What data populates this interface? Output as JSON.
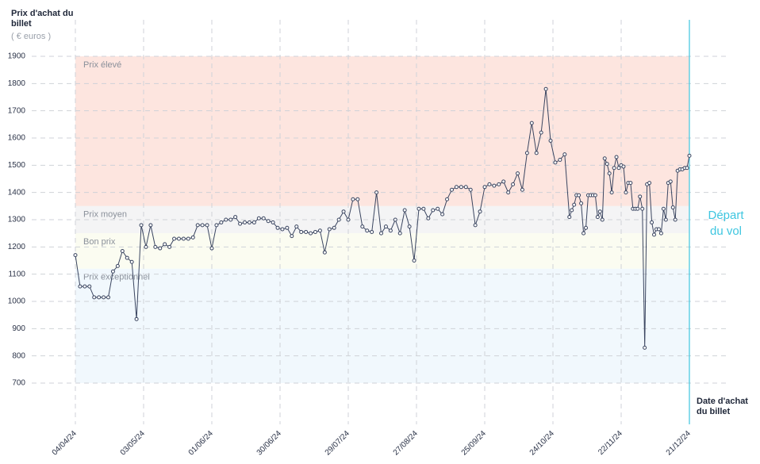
{
  "chart_data": {
    "type": "line",
    "y_label": "Prix d'achat du billet",
    "y_unit": "( € euros )",
    "x_label": "Date d'achat du billet",
    "annotation": "Départ du vol",
    "ylim": [
      700,
      1900
    ],
    "yticks": [
      700,
      800,
      900,
      1000,
      1100,
      1200,
      1300,
      1400,
      1500,
      1600,
      1700,
      1800,
      1900
    ],
    "xlim": [
      "04/04/24",
      "21/12/24"
    ],
    "xticks": [
      "04/04/24",
      "03/05/24",
      "01/06/24",
      "30/06/24",
      "29/07/24",
      "27/08/24",
      "25/09/24",
      "24/10/24",
      "22/11/24",
      "21/12/24"
    ],
    "grid": true,
    "bands": [
      {
        "name": "Prix élevé",
        "from": 1350,
        "to": 1900,
        "color": "#fde5df"
      },
      {
        "name": "Prix moyen",
        "from": 1250,
        "to": 1350,
        "color": "#f4f4f5"
      },
      {
        "name": "Bon prix",
        "from": 1120,
        "to": 1250,
        "color": "#fbfcf1"
      },
      {
        "name": "Prix exceptionnel",
        "from": 700,
        "to": 1120,
        "color": "#f1f8fd"
      }
    ],
    "series": [
      {
        "color": "#3a4560",
        "x": [
          "04/04/24",
          "06/04/24",
          "08/04/24",
          "10/04/24",
          "12/04/24",
          "14/04/24",
          "16/04/24",
          "18/04/24",
          "20/04/24",
          "22/04/24",
          "24/04/24",
          "26/04/24",
          "28/04/24",
          "30/04/24",
          "02/05/24",
          "04/05/24",
          "06/05/24",
          "08/05/24",
          "10/05/24",
          "12/05/24",
          "14/05/24",
          "16/05/24",
          "18/05/24",
          "20/05/24",
          "22/05/24",
          "24/05/24",
          "26/05/24",
          "28/05/24",
          "30/05/24",
          "01/06/24",
          "03/06/24",
          "05/06/24",
          "07/06/24",
          "09/06/24",
          "11/06/24",
          "13/06/24",
          "15/06/24",
          "17/06/24",
          "19/06/24",
          "21/06/24",
          "23/06/24",
          "25/06/24",
          "27/06/24",
          "29/06/24",
          "01/07/24",
          "03/07/24",
          "05/07/24",
          "07/07/24",
          "09/07/24",
          "11/07/24",
          "13/07/24",
          "15/07/24",
          "17/07/24",
          "19/07/24",
          "21/07/24",
          "23/07/24",
          "25/07/24",
          "27/07/24",
          "29/07/24",
          "31/07/24",
          "02/08/24",
          "04/08/24",
          "06/08/24",
          "08/08/24",
          "10/08/24",
          "12/08/24",
          "14/08/24",
          "16/08/24",
          "18/08/24",
          "20/08/24",
          "22/08/24",
          "24/08/24",
          "26/08/24",
          "28/08/24",
          "30/08/24",
          "01/09/24",
          "03/09/24",
          "05/09/24",
          "07/09/24",
          "09/09/24",
          "11/09/24",
          "13/09/24",
          "15/09/24",
          "17/09/24",
          "19/09/24",
          "21/09/24",
          "23/09/24",
          "25/09/24",
          "27/09/24",
          "29/09/24",
          "01/10/24",
          "03/10/24",
          "05/10/24",
          "07/10/24",
          "09/10/24",
          "11/10/24",
          "13/10/24",
          "15/10/24",
          "17/10/24",
          "19/10/24",
          "21/10/24",
          "23/10/24",
          "25/10/24",
          "27/10/24",
          "29/10/24",
          "31/10/24",
          "01/11/24",
          "02/11/24",
          "03/11/24",
          "04/11/24",
          "05/11/24",
          "06/11/24",
          "07/11/24",
          "08/11/24",
          "09/11/24",
          "10/11/24",
          "11/11/24",
          "12/11/24",
          "13/11/24",
          "14/11/24",
          "15/11/24",
          "16/11/24",
          "17/11/24",
          "18/11/24",
          "19/11/24",
          "20/11/24",
          "21/11/24",
          "22/11/24",
          "23/11/24",
          "24/11/24",
          "25/11/24",
          "26/11/24",
          "27/11/24",
          "28/11/24",
          "29/11/24",
          "30/11/24",
          "01/12/24",
          "02/12/24",
          "03/12/24",
          "04/12/24",
          "05/12/24",
          "06/12/24",
          "07/12/24",
          "08/12/24",
          "09/12/24",
          "10/12/24",
          "11/12/24",
          "12/12/24",
          "13/12/24",
          "14/12/24",
          "15/12/24",
          "16/12/24",
          "17/12/24",
          "18/12/24",
          "19/12/24",
          "20/12/24",
          "21/12/24"
        ],
        "values": [
          1170,
          1055,
          1055,
          1055,
          1015,
          1015,
          1015,
          1015,
          1110,
          1130,
          1185,
          1160,
          1145,
          935,
          1280,
          1200,
          1280,
          1200,
          1195,
          1210,
          1200,
          1230,
          1230,
          1230,
          1230,
          1235,
          1280,
          1280,
          1280,
          1195,
          1280,
          1290,
          1300,
          1300,
          1310,
          1285,
          1290,
          1290,
          1290,
          1305,
          1305,
          1295,
          1290,
          1270,
          1265,
          1270,
          1240,
          1275,
          1255,
          1255,
          1250,
          1255,
          1260,
          1180,
          1265,
          1270,
          1300,
          1330,
          1300,
          1375,
          1375,
          1275,
          1260,
          1255,
          1400,
          1250,
          1275,
          1260,
          1300,
          1250,
          1335,
          1275,
          1150,
          1340,
          1340,
          1305,
          1335,
          1340,
          1320,
          1375,
          1410,
          1420,
          1420,
          1420,
          1410,
          1280,
          1330,
          1420,
          1430,
          1425,
          1430,
          1440,
          1400,
          1430,
          1470,
          1410,
          1545,
          1655,
          1545,
          1620,
          1780,
          1590,
          1510,
          1520,
          1540,
          1310,
          1335,
          1355,
          1390,
          1390,
          1360,
          1250,
          1270,
          1390,
          1390,
          1390,
          1390,
          1310,
          1330,
          1300,
          1525,
          1505,
          1470,
          1400,
          1490,
          1530,
          1490,
          1500,
          1495,
          1400,
          1435,
          1435,
          1340,
          1340,
          1340,
          1385,
          1340,
          830,
          1430,
          1435,
          1290,
          1245,
          1265,
          1265,
          1250,
          1340,
          1300,
          1435,
          1440,
          1345,
          1300,
          1480,
          1485,
          1485,
          1490,
          1490,
          1535
        ]
      }
    ]
  }
}
